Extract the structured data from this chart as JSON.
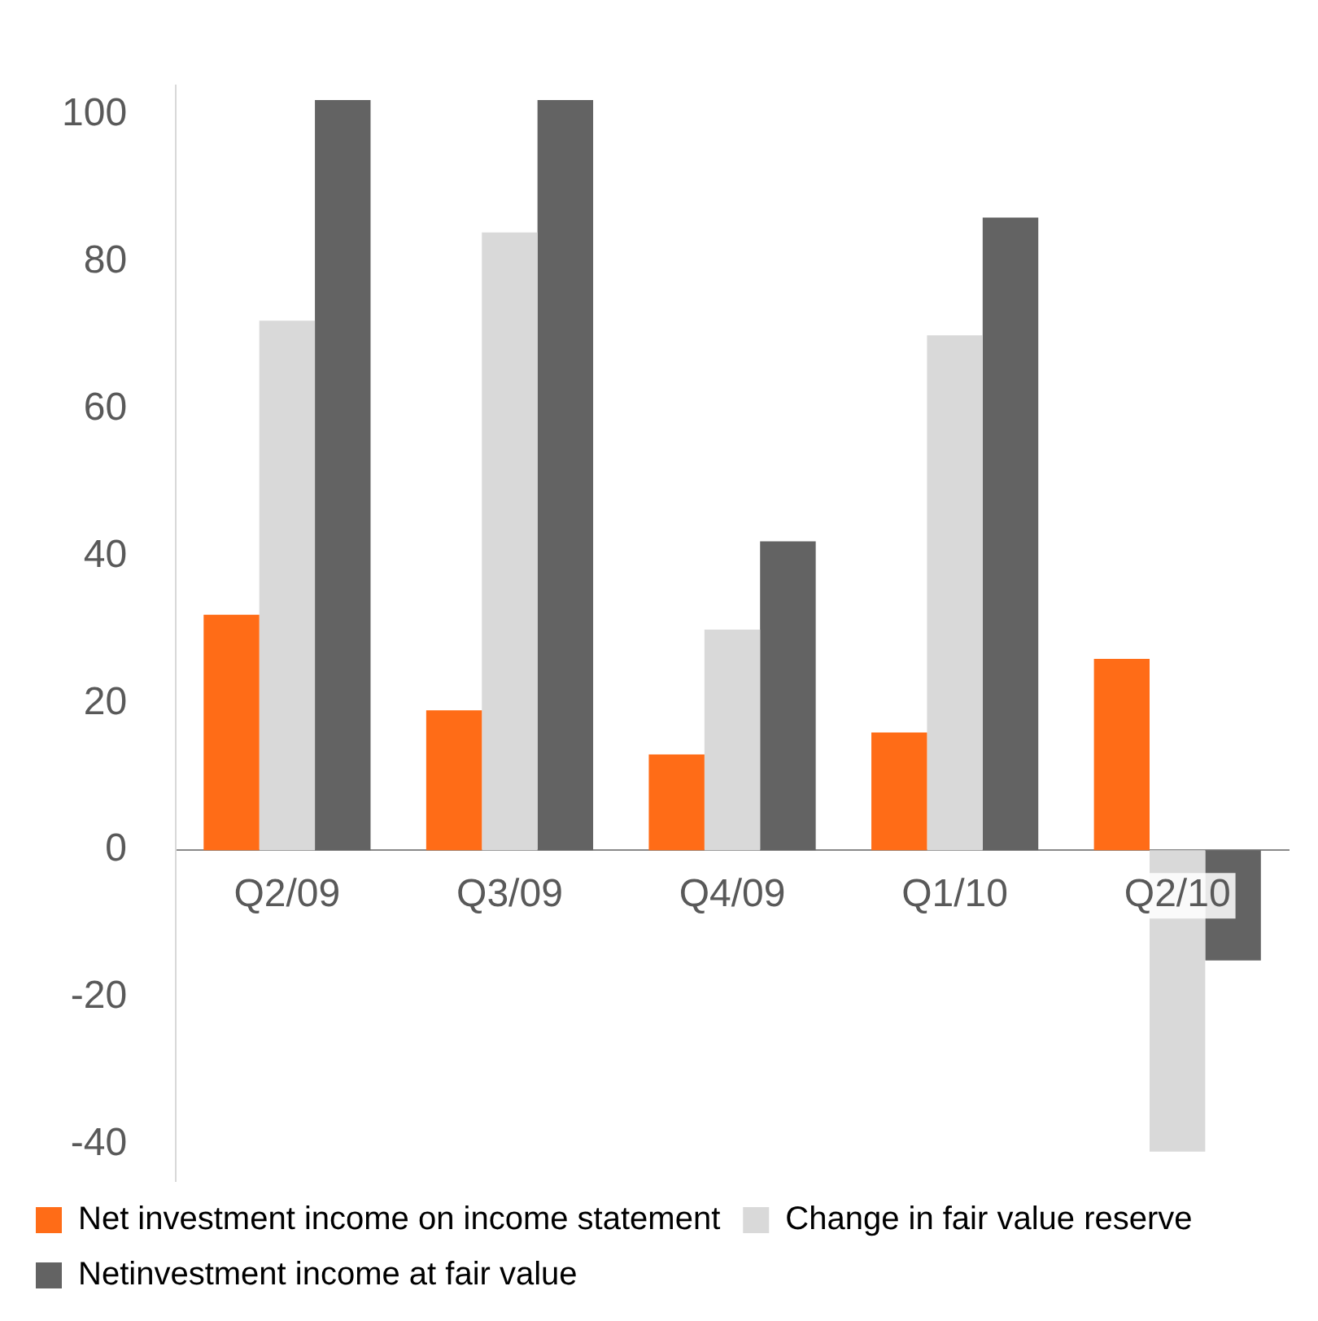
{
  "chart_data": {
    "type": "bar",
    "categories": [
      "Q2/09",
      "Q3/09",
      "Q4/09",
      "Q1/10",
      "Q2/10"
    ],
    "series": [
      {
        "name": "Net investment income on income statement",
        "color": "#ff6c17",
        "values": [
          32,
          19,
          13,
          16,
          26
        ]
      },
      {
        "name": "Change in fair value reserve",
        "color": "#d9d9d9",
        "values": [
          72,
          84,
          30,
          70,
          -41
        ]
      },
      {
        "name": "Netinvestment income at fair value",
        "color": "#636363",
        "values": [
          102,
          102,
          42,
          86,
          -15
        ]
      }
    ],
    "ylim": [
      -45,
      104
    ],
    "yticks": [
      -40,
      -20,
      0,
      20,
      40,
      60,
      80,
      100
    ],
    "grid": false,
    "legend": "bottom"
  }
}
